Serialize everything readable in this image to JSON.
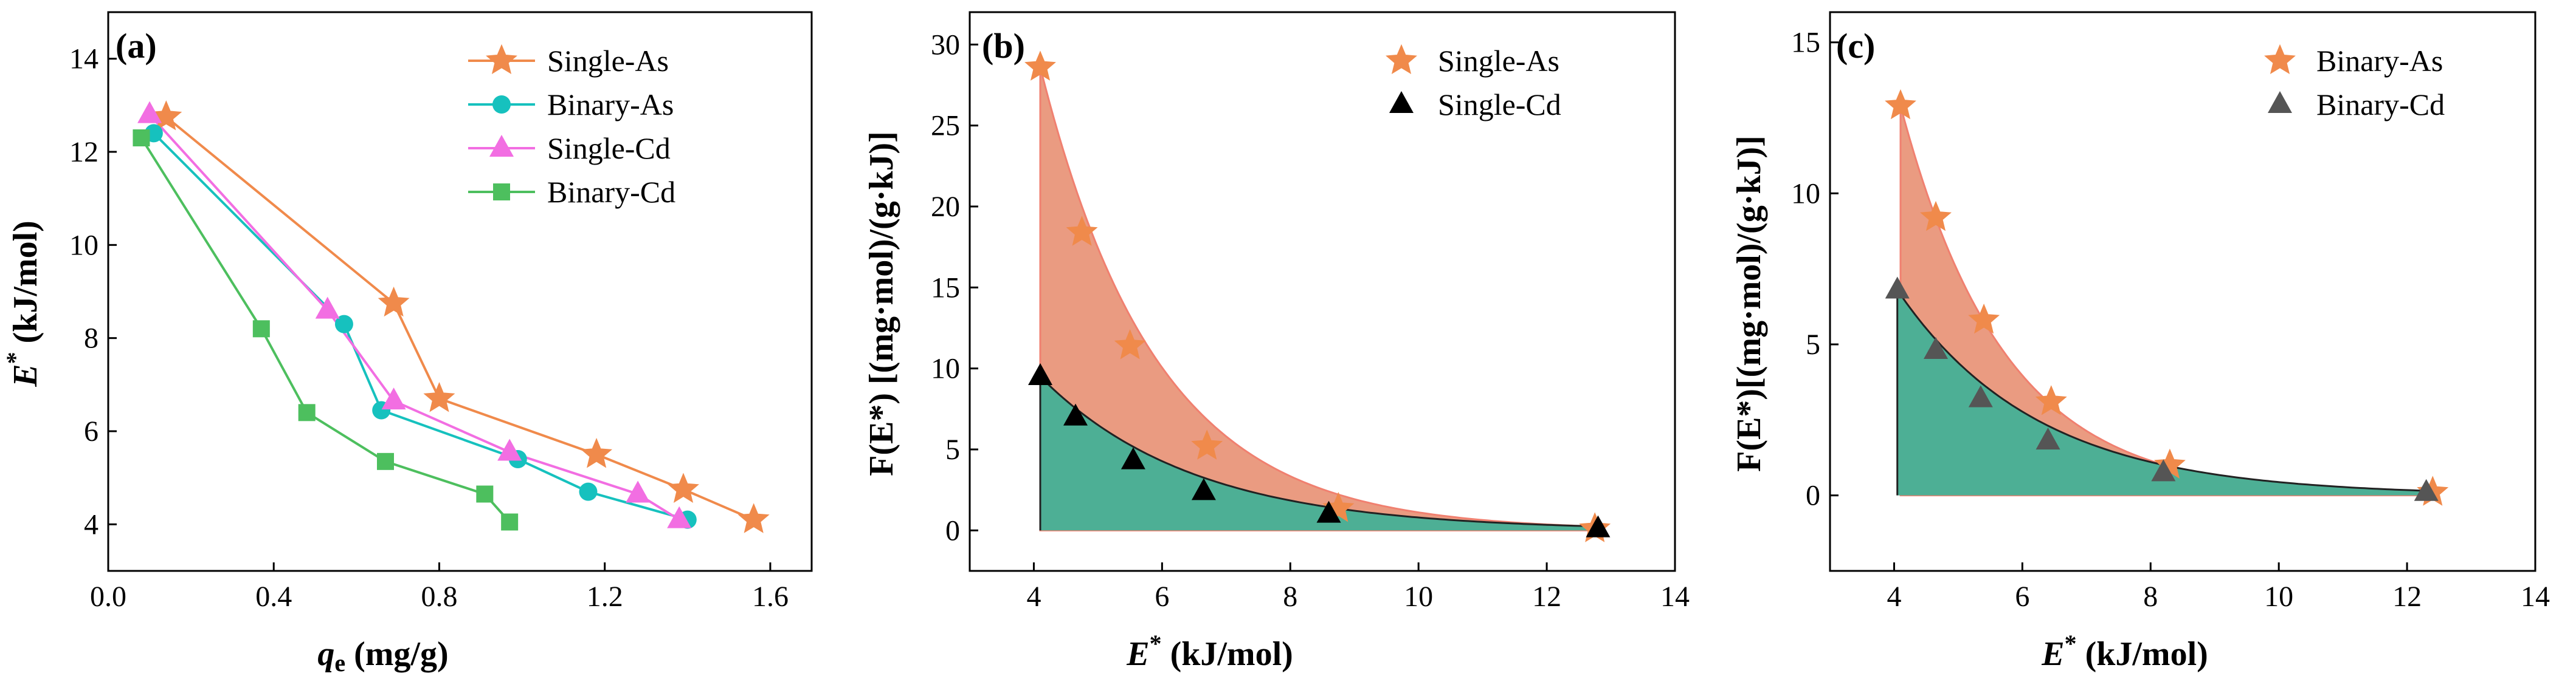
{
  "chart_data": [
    {
      "type": "line",
      "panel_label": "(a)",
      "xlabel_main": "q",
      "xlabel_sub": "e",
      "xlabel_unit": " (mg/g)",
      "ylabel_main": "E",
      "ylabel_sup": "*",
      "ylabel_unit": " (kJ/mol)",
      "xlim": [
        0.0,
        1.7
      ],
      "ylim": [
        3.0,
        15.0
      ],
      "xticks": [
        "0.0",
        "0.4",
        "0.8",
        "1.2",
        "1.6"
      ],
      "xtick_values": [
        0.0,
        0.4,
        0.8,
        1.2,
        1.6
      ],
      "yticks": [
        "4",
        "6",
        "8",
        "10",
        "12",
        "14"
      ],
      "ytick_values": [
        4,
        6,
        8,
        10,
        12,
        14
      ],
      "legend_position": "top-right",
      "series": [
        {
          "name": "Single-As",
          "color": "#F08A4B",
          "marker": "star",
          "x": [
            0.14,
            0.69,
            0.8,
            1.18,
            1.39,
            1.56
          ],
          "y": [
            12.75,
            8.75,
            6.7,
            5.5,
            4.75,
            4.1
          ]
        },
        {
          "name": "Binary-As",
          "color": "#16C1BE",
          "marker": "circle",
          "x": [
            0.11,
            0.57,
            0.66,
            0.99,
            1.16,
            1.4
          ],
          "y": [
            12.4,
            8.3,
            6.45,
            5.4,
            4.7,
            4.1
          ]
        },
        {
          "name": "Single-Cd",
          "color": "#F26EE2",
          "marker": "triangle",
          "x": [
            0.1,
            0.53,
            0.69,
            0.97,
            1.28,
            1.38
          ],
          "y": [
            12.8,
            8.6,
            6.65,
            5.55,
            4.65,
            4.1
          ]
        },
        {
          "name": "Binary-Cd",
          "color": "#4DBF5E",
          "marker": "square",
          "x": [
            0.08,
            0.37,
            0.48,
            0.67,
            0.91,
            0.97
          ],
          "y": [
            12.3,
            8.2,
            6.4,
            5.35,
            4.65,
            4.05
          ]
        }
      ]
    },
    {
      "type": "area",
      "panel_label": "(b)",
      "xlabel_main": "E",
      "xlabel_sup": "*",
      "xlabel_unit": " (kJ/mol)",
      "ylabel": "F(E*) [(mg·mol)/(g·kJ)]",
      "xlim": [
        3.0,
        14.0
      ],
      "ylim": [
        -2.5,
        32.0
      ],
      "xticks": [
        "4",
        "6",
        "8",
        "10",
        "12",
        "14"
      ],
      "xtick_values": [
        4,
        6,
        8,
        10,
        12,
        14
      ],
      "yticks": [
        "0",
        "5",
        "10",
        "15",
        "20",
        "25",
        "30"
      ],
      "ytick_values": [
        0,
        5,
        10,
        15,
        20,
        25,
        30
      ],
      "legend_position": "top-right",
      "series": [
        {
          "name": "Single-As",
          "color": "#F08A4B",
          "fill": "#E68A6B",
          "marker": "star",
          "x": [
            4.1,
            4.75,
            5.5,
            6.7,
            8.75,
            12.75
          ],
          "y": [
            28.6,
            18.4,
            11.4,
            5.2,
            1.35,
            0.1
          ]
        },
        {
          "name": "Single-Cd",
          "color": "#000000",
          "fill": "#4DAF95",
          "marker": "triangle",
          "x": [
            4.1,
            4.65,
            5.55,
            6.65,
            8.6,
            12.8
          ],
          "y": [
            9.5,
            7.0,
            4.3,
            2.4,
            1.0,
            0.1
          ]
        }
      ],
      "curves": [
        {
          "x0": 4.1,
          "y0": 28.6,
          "decay": 0.55,
          "x1": 12.75
        },
        {
          "x0": 4.1,
          "y0": 9.5,
          "decay": 0.42,
          "x1": 12.8
        }
      ]
    },
    {
      "type": "area",
      "panel_label": "(c)",
      "xlabel_main": "E",
      "xlabel_sup": "*",
      "xlabel_unit": " (kJ/mol)",
      "ylabel": "F(E*)[(mg·mol)/(g·kJ)]",
      "xlim": [
        3.0,
        14.0
      ],
      "ylim": [
        -2.5,
        16.0
      ],
      "xticks": [
        "4",
        "6",
        "8",
        "10",
        "12",
        "14"
      ],
      "xtick_values": [
        4,
        6,
        8,
        10,
        12,
        14
      ],
      "yticks": [
        "0",
        "5",
        "10",
        "15"
      ],
      "ytick_values": [
        0,
        5,
        10,
        15
      ],
      "legend_position": "top-right",
      "series": [
        {
          "name": "Binary-As",
          "color": "#F08A4B",
          "fill": "#E68A6B",
          "marker": "star",
          "x": [
            4.1,
            4.65,
            5.4,
            6.45,
            8.3,
            12.4
          ],
          "y": [
            12.9,
            9.2,
            5.8,
            3.1,
            1.0,
            0.1
          ]
        },
        {
          "name": "Binary-Cd",
          "color": "#555555",
          "fill": "#4DAF95",
          "marker": "triangle",
          "x": [
            4.05,
            4.65,
            5.35,
            6.4,
            8.2,
            12.3
          ],
          "y": [
            6.8,
            4.8,
            3.2,
            1.8,
            0.75,
            0.1
          ]
        }
      ],
      "curves": [
        {
          "x0": 4.1,
          "y0": 12.9,
          "decay": 0.62,
          "x1": 12.4
        },
        {
          "x0": 4.05,
          "y0": 6.8,
          "decay": 0.46,
          "x1": 12.3
        }
      ]
    }
  ]
}
